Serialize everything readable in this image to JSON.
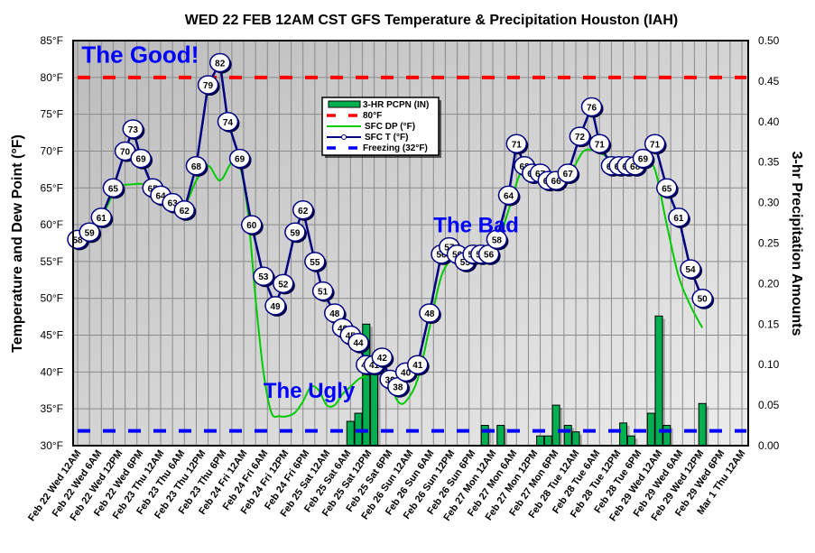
{
  "chart_data": {
    "type": "line",
    "title": "WED 22 FEB 12AM CST GFS Temperature & Precipitation Houston (IAH)",
    "ylabel": "Temperature and Dew Point (°F)",
    "y2label": "3-hr Precipitation Amounts",
    "ylim": [
      30,
      85
    ],
    "y2lim": [
      0,
      0.5
    ],
    "yticks": [
      "30°F",
      "35°F",
      "40°F",
      "45°F",
      "50°F",
      "55°F",
      "60°F",
      "65°F",
      "70°F",
      "75°F",
      "80°F",
      "85°F"
    ],
    "y2ticks": [
      "0.00",
      "0.05",
      "0.10",
      "0.15",
      "0.20",
      "0.25",
      "0.30",
      "0.35",
      "0.40",
      "0.45",
      "0.50"
    ],
    "xlim_hours": [
      0,
      168
    ],
    "xticks": [
      "Feb 22 Wed 12AM",
      "Feb 22 Wed 6AM",
      "Feb 22 Wed 12PM",
      "Feb 22 Wed 6PM",
      "Feb 23 Thu 12AM",
      "Feb 23 Thu 6AM",
      "Feb 23 Thu 12PM",
      "Feb 23 Thu 6PM",
      "Feb 24 Fri 12AM",
      "Feb 24 Fri 6AM",
      "Feb 24 Fri 12PM",
      "Feb 24 Fri 6PM",
      "Feb 25 Sat 12AM",
      "Feb 25 Sat 6AM",
      "Feb 25 Sat 12PM",
      "Feb 25 Sat 6PM",
      "Feb 26 Sun 12AM",
      "Feb 26 Sun 6AM",
      "Feb 26 Sun 12PM",
      "Feb 26 Sun 6PM",
      "Feb 27 Mon 12AM",
      "Feb 27 Mon 6AM",
      "Feb 27 Mon 12PM",
      "Feb 27 Mon 6PM",
      "Feb 28 Tue 12AM",
      "Feb 28 Tue 6AM",
      "Feb 28 Tue 12PM",
      "Feb 28 Tue 6PM",
      "Feb 29 Wed 12AM",
      "Feb 29 Wed 6AM",
      "Feb 29 Wed 12PM",
      "Feb 29 Wed 6PM",
      "Mar 1 Thu 12AM"
    ],
    "legend": {
      "placement": "top-center",
      "entries": [
        "3-HR PCPN  (IN)",
        "80°F",
        "SFC DP (°F)",
        "SFC T (°F)",
        "Freezing (32°F)"
      ]
    },
    "annotations": [
      {
        "text": "The Good!",
        "hour": 1,
        "value": 82
      },
      {
        "text": "The Bad",
        "hour": 90,
        "value": 59
      },
      {
        "text": "The Ugly",
        "hour": 47,
        "value": 36.5
      }
    ],
    "reference_lines": [
      {
        "name": "80°F",
        "value": 80,
        "color": "#ff0000"
      },
      {
        "name": "Freezing (32°F)",
        "value": 32,
        "color": "#0000ff"
      }
    ],
    "series": [
      {
        "name": "SFC T (°F)",
        "color": "#000080",
        "points": [
          [
            0,
            58
          ],
          [
            3,
            59
          ],
          [
            6,
            61
          ],
          [
            9,
            65
          ],
          [
            12,
            70
          ],
          [
            14,
            73
          ],
          [
            16,
            69
          ],
          [
            19,
            65
          ],
          [
            21,
            64
          ],
          [
            24,
            63
          ],
          [
            27,
            62
          ],
          [
            30,
            68
          ],
          [
            33,
            79
          ],
          [
            36,
            82
          ],
          [
            38,
            74
          ],
          [
            41,
            69
          ],
          [
            44,
            60
          ],
          [
            47,
            53
          ],
          [
            50,
            49
          ],
          [
            52,
            52
          ],
          [
            55,
            59
          ],
          [
            57,
            62
          ],
          [
            60,
            55
          ],
          [
            62,
            51
          ],
          [
            65,
            48
          ],
          [
            67,
            46
          ],
          [
            69,
            45
          ],
          [
            71,
            44
          ],
          [
            73,
            41
          ],
          [
            75,
            41
          ],
          [
            77,
            42
          ],
          [
            79,
            39
          ],
          [
            81,
            38
          ],
          [
            83,
            40
          ],
          [
            86,
            41
          ],
          [
            89,
            48
          ],
          [
            92,
            56
          ],
          [
            94,
            57
          ],
          [
            96,
            56
          ],
          [
            98,
            55
          ],
          [
            100,
            56
          ],
          [
            102,
            56
          ],
          [
            104,
            56
          ],
          [
            106,
            58
          ],
          [
            109,
            64
          ],
          [
            111,
            71
          ],
          [
            113,
            68
          ],
          [
            115,
            67
          ],
          [
            117,
            67
          ],
          [
            119,
            66
          ],
          [
            121,
            66
          ],
          [
            124,
            67
          ],
          [
            127,
            72
          ],
          [
            130,
            76
          ],
          [
            132,
            71
          ],
          [
            135,
            68
          ],
          [
            137,
            68
          ],
          [
            139,
            68
          ],
          [
            141,
            68
          ],
          [
            143,
            69
          ],
          [
            146,
            71
          ],
          [
            149,
            65
          ],
          [
            152,
            61
          ],
          [
            155,
            54
          ],
          [
            158,
            50
          ]
        ]
      },
      {
        "name": "SFC DP (°F)",
        "color": "#00cc00",
        "points": [
          [
            0,
            57.5
          ],
          [
            4,
            59
          ],
          [
            7,
            62
          ],
          [
            10,
            65
          ],
          [
            14,
            65.5
          ],
          [
            17,
            65.5
          ],
          [
            20,
            65
          ],
          [
            24,
            63
          ],
          [
            27,
            62.5
          ],
          [
            30,
            66
          ],
          [
            33,
            68
          ],
          [
            36,
            66
          ],
          [
            39,
            68.5
          ],
          [
            41,
            68
          ],
          [
            43,
            62
          ],
          [
            45,
            50
          ],
          [
            47,
            40
          ],
          [
            49,
            34.5
          ],
          [
            51,
            34
          ],
          [
            53,
            34
          ],
          [
            55,
            34.5
          ],
          [
            57,
            36
          ],
          [
            59,
            38
          ],
          [
            61,
            37.5
          ],
          [
            63,
            35.5
          ],
          [
            65,
            35.5
          ],
          [
            67,
            37
          ],
          [
            69,
            38
          ],
          [
            71,
            39
          ],
          [
            73,
            39.5
          ],
          [
            75,
            40
          ],
          [
            77,
            40
          ],
          [
            79,
            38.5
          ],
          [
            81,
            36
          ],
          [
            83,
            36
          ],
          [
            86,
            39
          ],
          [
            89,
            46
          ],
          [
            92,
            53
          ],
          [
            95,
            55.5
          ],
          [
            98,
            56
          ],
          [
            101,
            56.5
          ],
          [
            104,
            56.5
          ],
          [
            106,
            57
          ],
          [
            109,
            62
          ],
          [
            112,
            67
          ],
          [
            115,
            67.5
          ],
          [
            119,
            67
          ],
          [
            122,
            67
          ],
          [
            125,
            67.5
          ],
          [
            128,
            70
          ],
          [
            131,
            70
          ],
          [
            135,
            69
          ],
          [
            140,
            68.5
          ],
          [
            143,
            69
          ],
          [
            146,
            67.5
          ],
          [
            149,
            60
          ],
          [
            152,
            53
          ],
          [
            155,
            49
          ],
          [
            158,
            46
          ]
        ]
      }
    ],
    "precip_series": {
      "name": "3-HR PCPN  (IN)",
      "color": "#00b050",
      "points": [
        [
          69,
          0.03
        ],
        [
          71,
          0.04
        ],
        [
          73,
          0.15
        ],
        [
          75,
          0.1
        ],
        [
          103,
          0.025
        ],
        [
          107,
          0.025
        ],
        [
          117,
          0.012
        ],
        [
          119,
          0.012
        ],
        [
          121,
          0.05
        ],
        [
          124,
          0.025
        ],
        [
          126,
          0.017
        ],
        [
          138,
          0.028
        ],
        [
          140,
          0.012
        ],
        [
          145,
          0.04
        ],
        [
          147,
          0.16
        ],
        [
          149,
          0.025
        ],
        [
          158,
          0.052
        ]
      ]
    }
  }
}
